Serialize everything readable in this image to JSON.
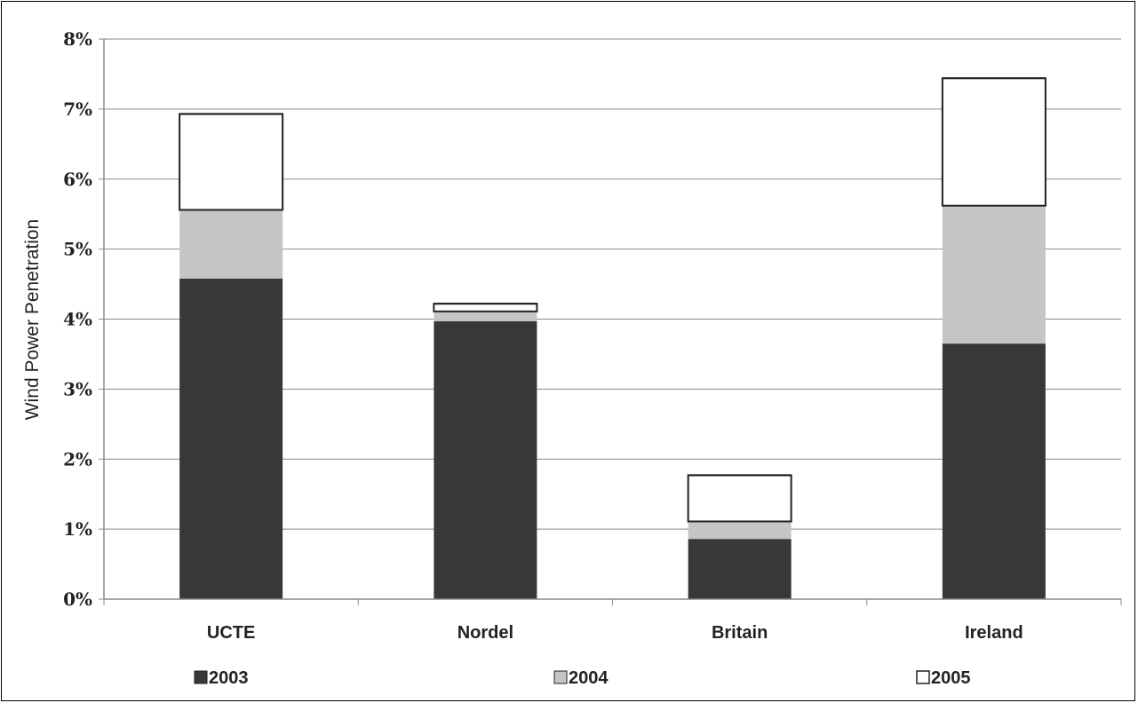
{
  "chart_data": {
    "type": "bar",
    "stacked": true,
    "categories": [
      "UCTE",
      "Nordel",
      "Britain",
      "Ireland"
    ],
    "series": [
      {
        "name": "2003",
        "values": [
          4.58,
          3.97,
          0.86,
          3.65
        ],
        "color": "#383838"
      },
      {
        "name": "2004",
        "values": [
          0.98,
          0.14,
          0.25,
          1.97
        ],
        "color": "#c5c5c5"
      },
      {
        "name": "2005",
        "values": [
          1.37,
          0.11,
          0.66,
          1.82
        ],
        "color": "#ffffff"
      }
    ],
    "ylabel": "Wind Power Penetration",
    "ylim": [
      0,
      8
    ],
    "yticks": [
      0,
      1,
      2,
      3,
      4,
      5,
      6,
      7,
      8
    ],
    "ytick_labels": [
      "0%",
      "1%",
      "2%",
      "3%",
      "4%",
      "5%",
      "6%",
      "7%",
      "8%"
    ],
    "grid": true,
    "legend_position": "bottom"
  }
}
